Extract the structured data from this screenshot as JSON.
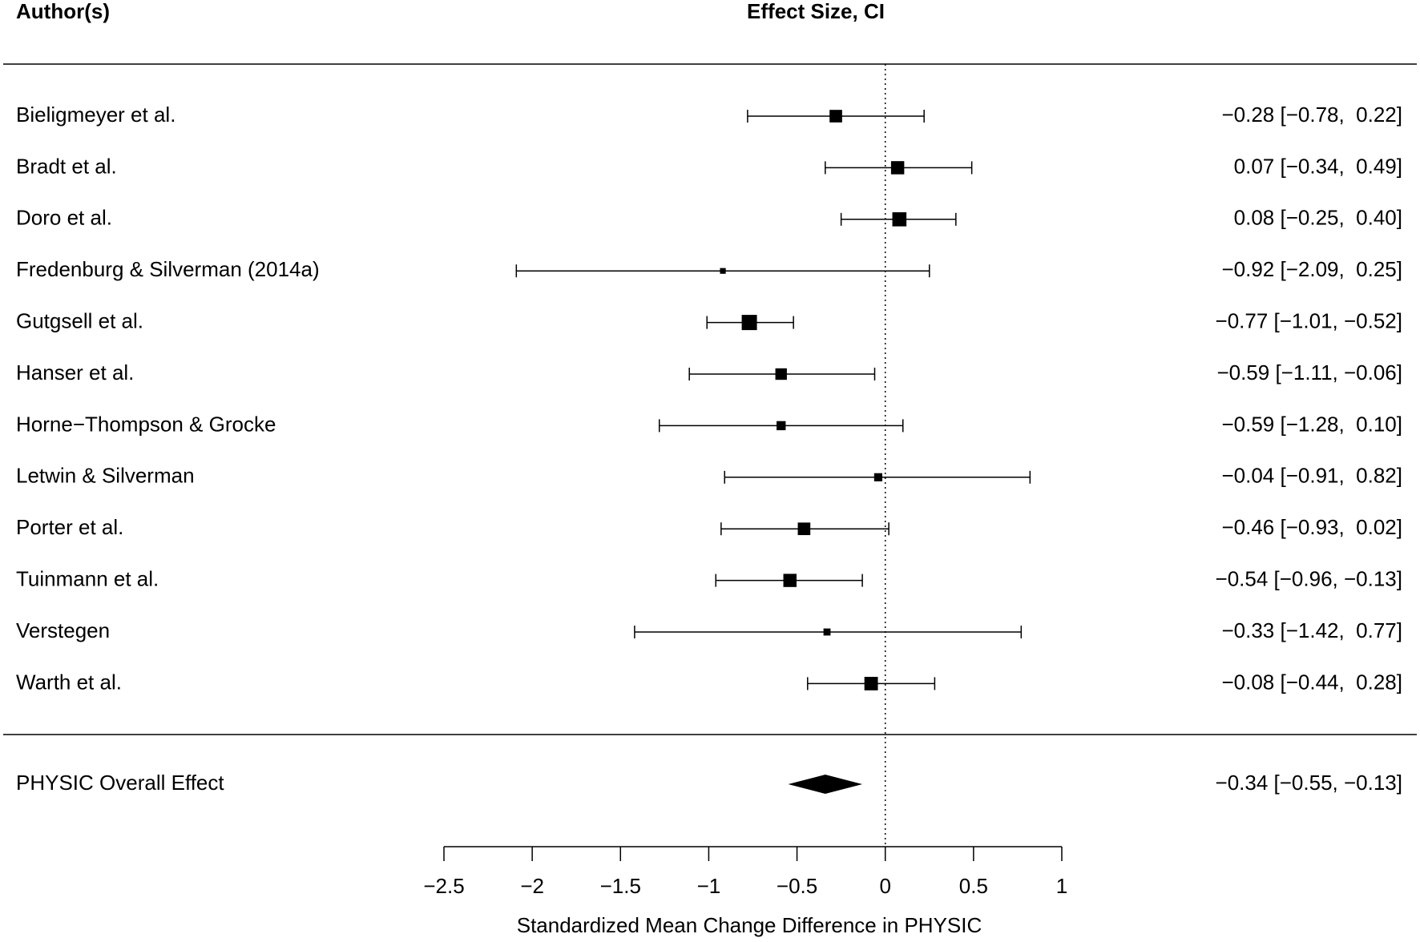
{
  "chart_data": {
    "type": "forest",
    "header_left": "Author(s)",
    "header_right": "Effect Size, CI",
    "xlabel": "Standardized Mean Change Difference in PHYSIC",
    "categories": [
      "Bieligmeyer et al.",
      "Bradt et al.",
      "Doro et al.",
      "Fredenburg & Silverman (2014a)",
      "Gutgsell et al.",
      "Hanser et al.",
      "Horne−Thompson & Grocke",
      "Letwin & Silverman",
      "Porter et al.",
      "Tuinmann et al.",
      "Verstegen",
      "Warth et al."
    ],
    "values": [
      -0.28,
      0.07,
      0.08,
      -0.92,
      -0.77,
      -0.59,
      -0.59,
      -0.04,
      -0.46,
      -0.54,
      -0.33,
      -0.08
    ],
    "lower": [
      -0.78,
      -0.34,
      -0.25,
      -2.09,
      -1.01,
      -1.11,
      -1.28,
      -0.91,
      -0.93,
      -0.96,
      -1.42,
      -0.44
    ],
    "upper": [
      0.22,
      0.49,
      0.4,
      0.25,
      -0.52,
      -0.06,
      0.1,
      0.82,
      0.02,
      -0.13,
      0.77,
      0.28
    ],
    "weights": [
      9.5,
      10.5,
      12,
      2,
      14,
      8,
      5,
      4,
      9.5,
      10.5,
      3,
      11
    ],
    "value_labels": [
      "−0.28 [−0.78,  0.22]",
      "0.07 [−0.34,  0.49]",
      "0.08 [−0.25,  0.40]",
      "−0.92 [−2.09,  0.25]",
      "−0.77 [−1.01, −0.52]",
      "−0.59 [−1.11, −0.06]",
      "−0.59 [−1.28,  0.10]",
      "−0.04 [−0.91,  0.82]",
      "−0.46 [−0.93,  0.02]",
      "−0.54 [−0.96, −0.13]",
      "−0.33 [−1.42,  0.77]",
      "−0.08 [−0.44,  0.28]"
    ],
    "overall": {
      "name": "PHYSIC Overall Effect",
      "value": -0.34,
      "lower": -0.55,
      "upper": -0.13,
      "value_label": "−0.34 [−0.55, −0.13]"
    },
    "refline": 0,
    "color": "#000000",
    "xlim": [
      -2.5,
      1
    ],
    "xticks": [
      {
        "value": -2.5,
        "label": "−2.5"
      },
      {
        "value": -2,
        "label": "−2"
      },
      {
        "value": -1.5,
        "label": "−1.5"
      },
      {
        "value": -1,
        "label": "−1"
      },
      {
        "value": -0.5,
        "label": "−0.5"
      },
      0,
      0.5,
      1
    ]
  }
}
